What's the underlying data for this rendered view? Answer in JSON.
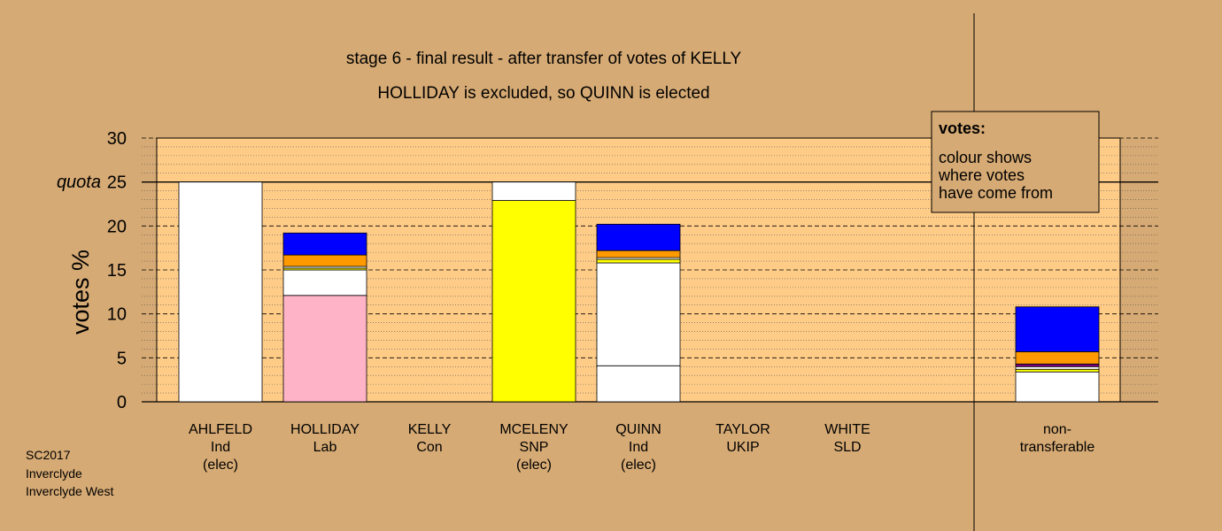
{
  "chart_data": {
    "type": "bar",
    "stacked": true,
    "title": "stage 6 - final result - after transfer of votes of KELLY",
    "subtitle": "HOLLIDAY is excluded, so QUINN is elected",
    "ylabel": "votes %",
    "ylim": [
      0,
      30
    ],
    "yticks": [
      "0",
      "5",
      "10",
      "15",
      "20",
      "25",
      "30"
    ],
    "quota_label": "quota",
    "quota": 25,
    "legend": {
      "title": "votes:",
      "lines": [
        "colour shows",
        "where votes",
        "have come from"
      ],
      "placement": "top-right"
    },
    "colors": {
      "pink": "#ffb3c6",
      "yellow": "#ffff00",
      "orange": "#ff9900",
      "blue": "#0000ff",
      "white": "#ffffff",
      "purple": "#800080",
      "gold": "#e6b800",
      "background": "#d6aa74",
      "plot_area": "#ffcc88"
    },
    "candidates": [
      {
        "name": "AHLFELD",
        "party": "Ind",
        "status": "(elec)",
        "segments": [
          {
            "color": "#ffffff",
            "value": 25.0
          }
        ]
      },
      {
        "name": "HOLLIDAY",
        "party": "Lab",
        "status": "",
        "segments": [
          {
            "color": "#ffb3c6",
            "value": 12.1
          },
          {
            "color": "#ffffff",
            "value": 2.9
          },
          {
            "color": "#ffff00",
            "value": 0.2
          },
          {
            "color": "#ffffff",
            "value": 0.2
          },
          {
            "color": "#ff9900",
            "value": 1.3
          },
          {
            "color": "#0000ff",
            "value": 2.5
          }
        ]
      },
      {
        "name": "KELLY",
        "party": "Con",
        "status": "",
        "segments": []
      },
      {
        "name": "MCELENY",
        "party": "SNP",
        "status": "(elec)",
        "segments": [
          {
            "color": "#ffff00",
            "value": 22.9
          },
          {
            "color": "#ffffff",
            "value": 2.1
          }
        ]
      },
      {
        "name": "QUINN",
        "party": "Ind",
        "status": "(elec)",
        "segments": [
          {
            "color": "#ffffff",
            "value": 4.1
          },
          {
            "color": "#ffffff",
            "value": 11.7
          },
          {
            "color": "#ffff00",
            "value": 0.4
          },
          {
            "color": "#ffffff",
            "value": 0.2
          },
          {
            "color": "#ff9900",
            "value": 0.8
          },
          {
            "color": "#0000ff",
            "value": 3.0
          }
        ]
      },
      {
        "name": "TAYLOR",
        "party": "UKIP",
        "status": "",
        "segments": []
      },
      {
        "name": "WHITE",
        "party": "SLD",
        "status": "",
        "segments": []
      }
    ],
    "nontransferable": {
      "label_lines": [
        "non-",
        "transferable"
      ],
      "segments": [
        {
          "color": "#ffffff",
          "value": 3.4
        },
        {
          "color": "#ffff00",
          "value": 0.3
        },
        {
          "color": "#ffffff",
          "value": 0.3
        },
        {
          "color": "#800080",
          "value": 0.3
        },
        {
          "color": "#ff9900",
          "value": 1.4
        },
        {
          "color": "#0000ff",
          "value": 5.1
        }
      ]
    },
    "footer": [
      "SC2017",
      "Inverclyde",
      "Inverclyde West"
    ]
  }
}
